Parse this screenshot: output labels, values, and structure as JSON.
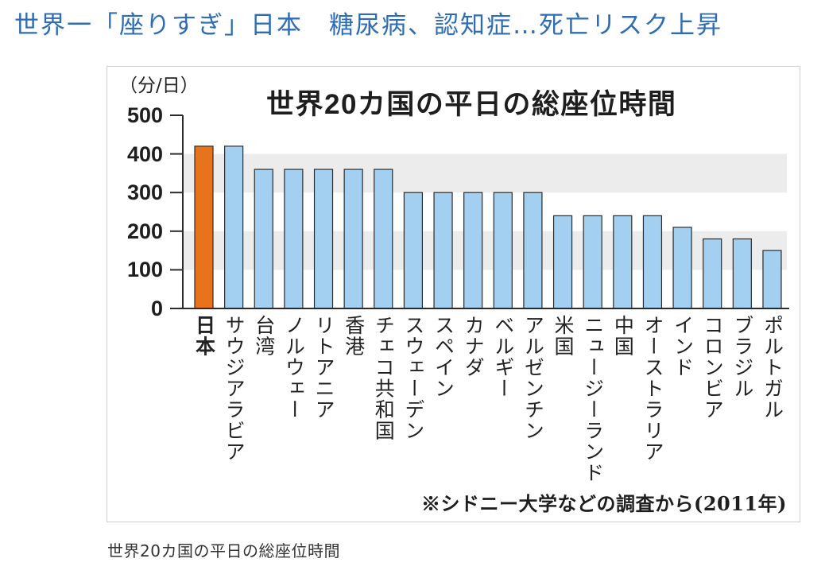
{
  "headline": "世界一「座りすぎ」日本　糖尿病、認知症…死亡リスク上昇",
  "caption": "世界20カ国の平日の総座位時間",
  "colors": {
    "headline": "#2f6cb6",
    "bar": "#a3cff1",
    "highlight_bar": "#e8731d",
    "band": "#ececec",
    "axis": "#2b2b2b"
  },
  "chart_data": {
    "type": "bar",
    "title": "世界20カ国の平日の総座位時間",
    "ylabel": "（分/日）",
    "ylim": [
      0,
      500
    ],
    "yticks": [
      0,
      100,
      200,
      300,
      400,
      500
    ],
    "bands": [
      [
        100,
        200
      ],
      [
        300,
        400
      ]
    ],
    "highlight_index": 0,
    "categories": [
      "日本",
      "サウジアラビア",
      "台湾",
      "ノルウェー",
      "リトアニア",
      "香港",
      "チェコ共和国",
      "スウェーデン",
      "スペイン",
      "カナダ",
      "ベルギー",
      "アルゼンチン",
      "米国",
      "ニュージーランド",
      "中国",
      "オーストラリア",
      "インド",
      "コロンビア",
      "ブラジル",
      "ポルトガル"
    ],
    "values": [
      420,
      420,
      360,
      360,
      360,
      360,
      360,
      300,
      300,
      300,
      300,
      300,
      240,
      240,
      240,
      240,
      210,
      180,
      180,
      150
    ],
    "note": "※シドニー大学などの調査から(2011年)"
  }
}
